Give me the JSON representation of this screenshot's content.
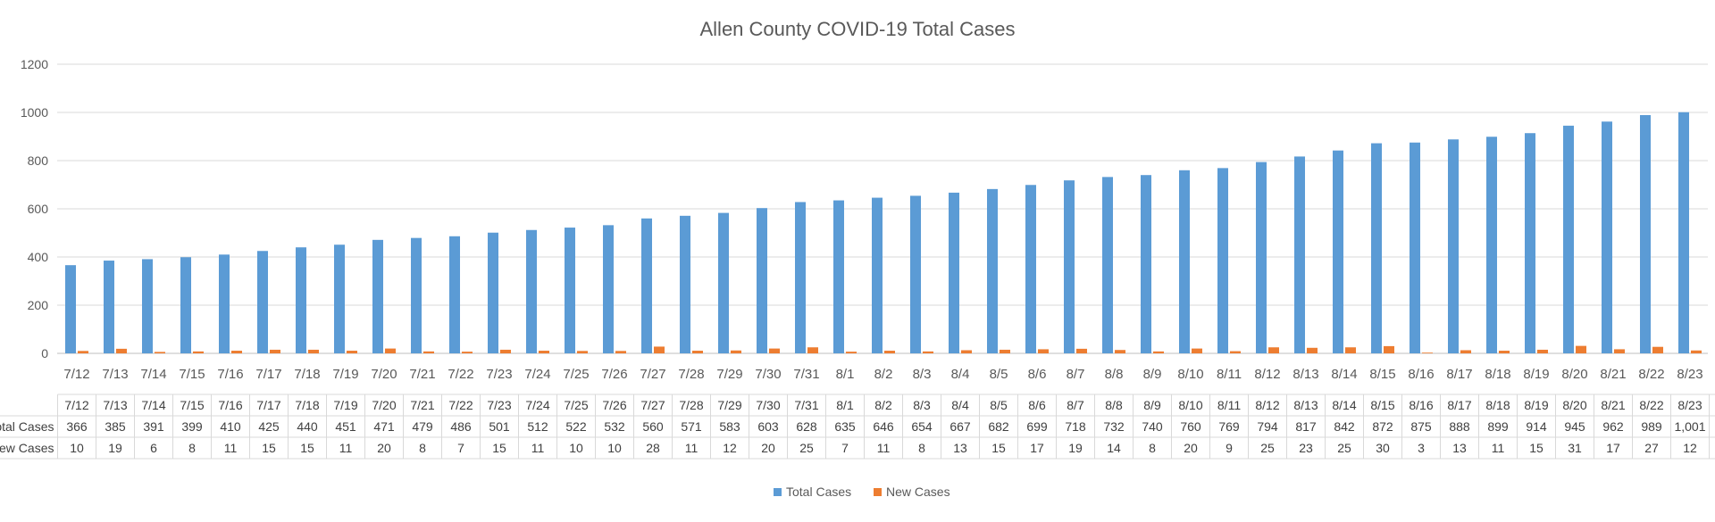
{
  "chart_data": {
    "type": "bar",
    "title": "Allen County COVID-19 Total Cases",
    "ylim": [
      0,
      1200
    ],
    "yticks": [
      0,
      200,
      400,
      600,
      800,
      1000,
      1200
    ],
    "yticklabels": [
      "0",
      "200",
      "400",
      "600",
      "800",
      "1000",
      "1200"
    ],
    "grid": true,
    "legend_position": "bottom",
    "categories": [
      "7/12",
      "7/13",
      "7/14",
      "7/15",
      "7/16",
      "7/17",
      "7/18",
      "7/19",
      "7/20",
      "7/21",
      "7/22",
      "7/23",
      "7/24",
      "7/25",
      "7/26",
      "7/27",
      "7/28",
      "7/29",
      "7/30",
      "7/31",
      "8/1",
      "8/2",
      "8/3",
      "8/4",
      "8/5",
      "8/6",
      "8/7",
      "8/8",
      "8/9",
      "8/10",
      "8/11",
      "8/12",
      "8/13",
      "8/14",
      "8/15",
      "8/16",
      "8/17",
      "8/18",
      "8/19",
      "8/20",
      "8/21",
      "8/22",
      "8/23"
    ],
    "series": [
      {
        "name": "Total Cases",
        "color": "#5B9BD5",
        "row_label": "Total Cases",
        "values": [
          366,
          385,
          391,
          399,
          410,
          425,
          440,
          451,
          471,
          479,
          486,
          501,
          512,
          522,
          532,
          560,
          571,
          583,
          603,
          628,
          635,
          646,
          654,
          667,
          682,
          699,
          718,
          732,
          740,
          760,
          769,
          794,
          817,
          842,
          872,
          875,
          888,
          899,
          914,
          945,
          962,
          989,
          1001
        ],
        "labels": [
          "366",
          "385",
          "391",
          "399",
          "410",
          "425",
          "440",
          "451",
          "471",
          "479",
          "486",
          "501",
          "512",
          "522",
          "532",
          "560",
          "571",
          "583",
          "603",
          "628",
          "635",
          "646",
          "654",
          "667",
          "682",
          "699",
          "718",
          "732",
          "740",
          "760",
          "769",
          "794",
          "817",
          "842",
          "872",
          "875",
          "888",
          "899",
          "914",
          "945",
          "962",
          "989",
          "1,001"
        ]
      },
      {
        "name": "New Cases",
        "color": "#ED7D31",
        "row_label": "New Cases",
        "values": [
          10,
          19,
          6,
          8,
          11,
          15,
          15,
          11,
          20,
          8,
          7,
          15,
          11,
          10,
          10,
          28,
          11,
          12,
          20,
          25,
          7,
          11,
          8,
          13,
          15,
          17,
          19,
          14,
          8,
          20,
          9,
          25,
          23,
          25,
          30,
          3,
          13,
          11,
          15,
          31,
          17,
          27,
          12
        ],
        "labels": [
          "10",
          "19",
          "6",
          "8",
          "11",
          "15",
          "15",
          "11",
          "20",
          "8",
          "7",
          "15",
          "11",
          "10",
          "10",
          "28",
          "11",
          "12",
          "20",
          "25",
          "7",
          "11",
          "8",
          "13",
          "15",
          "17",
          "19",
          "14",
          "8",
          "20",
          "9",
          "25",
          "23",
          "25",
          "30",
          "3",
          "13",
          "11",
          "15",
          "31",
          "17",
          "27",
          "12"
        ]
      }
    ]
  }
}
